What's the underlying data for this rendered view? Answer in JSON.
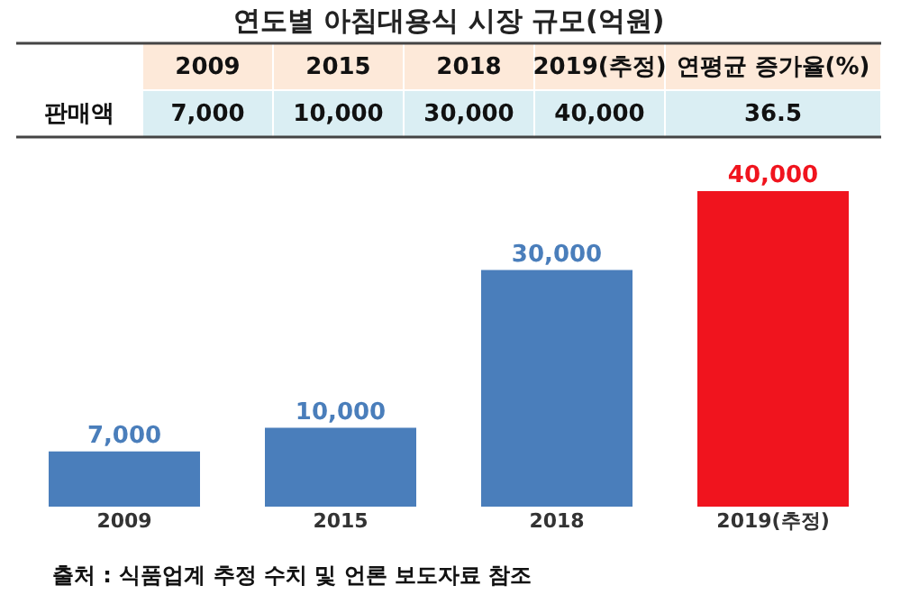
{
  "chart_data": {
    "type": "bar",
    "title": "연도별 아침대용식 시장 규모(억원)",
    "categories": [
      "2009",
      "2015",
      "2018",
      "2019(추정)"
    ],
    "values": [
      7000,
      10000,
      30000,
      40000
    ],
    "colors": [
      "#4a7ebb",
      "#4a7ebb",
      "#4a7ebb",
      "#f0141e"
    ],
    "value_labels": [
      "7,000",
      "10,000",
      "30,000",
      "40,000"
    ],
    "tick_labels": "x",
    "grid": false,
    "annotations": [
      "판매액",
      "연평균 증가율(%)",
      "36.5",
      "출처 : 식품업계 추정 수치 및 언론 보도자료 참조"
    ]
  }
}
